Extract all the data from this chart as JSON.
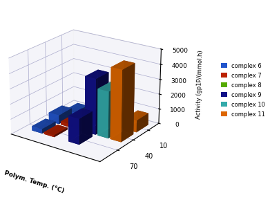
{
  "temperatures": [
    70,
    40,
    10
  ],
  "temp_labels": [
    "70",
    "40",
    "10"
  ],
  "complexes": [
    "complex 6",
    "complex 7",
    "complex 8",
    "complex 9",
    "complex 10",
    "complex 11"
  ],
  "colors": [
    "#2255cc",
    "#bb2200",
    "#55aa00",
    "#111188",
    "#33aaaa",
    "#dd6600"
  ],
  "values": {
    "70": [
      300,
      130,
      0,
      1700,
      0,
      0
    ],
    "40": [
      600,
      220,
      550,
      3700,
      3100,
      4700
    ],
    "10": [
      180,
      130,
      350,
      350,
      150,
      800
    ]
  },
  "zlim": [
    0,
    5000
  ],
  "zticks": [
    0,
    1000,
    2000,
    3000,
    4000,
    5000
  ],
  "zlabel": "Activity (gp1P/(mmol.h)",
  "xlabel": "Polym. Temp. (°C)",
  "background_color": "#ffffff",
  "elev": 22,
  "azim": -55,
  "bar_width": 0.55,
  "bar_depth": 0.6
}
